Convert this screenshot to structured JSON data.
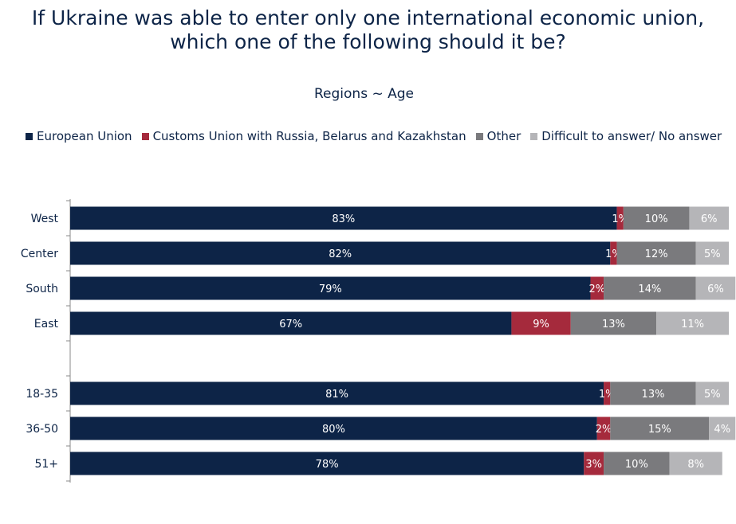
{
  "header": {
    "title_line1": "If Ukraine was able to enter only one international economic union,",
    "title_line2": "which one of the following should it be?",
    "subtitle": "Regions ~ Age"
  },
  "colors": {
    "eu": "#0d2447",
    "customs": "#a52a3c",
    "other": "#7a7a7d",
    "difficult": "#b5b5b8",
    "axis": "#8a8a8a",
    "text": "#0d2447"
  },
  "chart_data": {
    "type": "bar",
    "orientation": "horizontal",
    "stacked": true,
    "title": "If Ukraine was able to enter only one international economic union, which one of the following should it be?",
    "subtitle": "Regions ~ Age",
    "legend_position": "top",
    "categories": [
      "West",
      "Center",
      "South",
      "East",
      "18-35",
      "36-50",
      "51+"
    ],
    "groups": [
      {
        "name": "Regions",
        "categories": [
          "West",
          "Center",
          "South",
          "East"
        ]
      },
      {
        "name": "Age",
        "categories": [
          "18-35",
          "36-50",
          "51+"
        ]
      }
    ],
    "series": [
      {
        "name": "European Union",
        "color": "#0d2447",
        "values": [
          83,
          82,
          79,
          67,
          81,
          80,
          78
        ]
      },
      {
        "name": "Customs Union with Russia, Belarus and Kazakhstan",
        "color": "#a52a3c",
        "values": [
          1,
          1,
          2,
          9,
          1,
          2,
          3
        ]
      },
      {
        "name": "Other",
        "color": "#7a7a7d",
        "values": [
          10,
          12,
          14,
          13,
          13,
          15,
          10
        ]
      },
      {
        "name": "Difficult to answer/ No answer",
        "color": "#b5b5b8",
        "values": [
          6,
          5,
          6,
          11,
          5,
          4,
          8
        ]
      }
    ],
    "value_labels": [
      [
        "83%",
        "82%",
        "79%",
        "67%",
        "81%",
        "80%",
        "78%"
      ],
      [
        "1%",
        "1%",
        "2%",
        "9%",
        "1%",
        "2%",
        "3%"
      ],
      [
        "10%",
        "12%",
        "14%",
        "13%",
        "13%",
        "15%",
        "10%"
      ],
      [
        "6%",
        "5%",
        "6%",
        "11%",
        "5%",
        "4%",
        "8%"
      ]
    ],
    "xlim": [
      0,
      100
    ],
    "grid": false
  }
}
